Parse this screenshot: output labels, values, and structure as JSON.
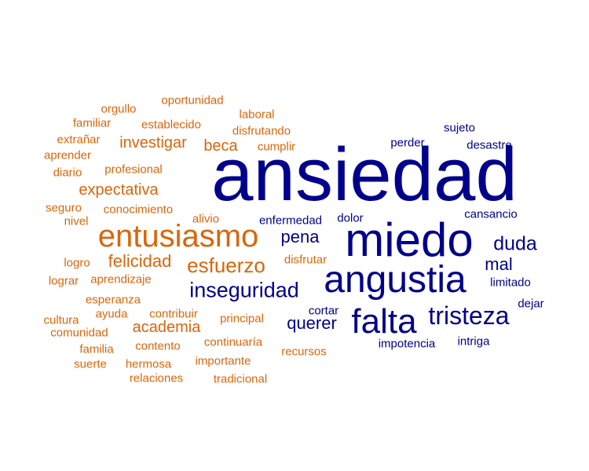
{
  "colors": {
    "negative": "#00008b",
    "positive": "#d9660b",
    "background": "#ffffff"
  },
  "negative_words": [
    "ansiedad",
    "miedo",
    "angustia",
    "falta",
    "tristeza",
    "inseguridad",
    "duda",
    "pena",
    "querer",
    "mal",
    "sujeto",
    "desastre",
    "perder",
    "cansancio",
    "dolor",
    "enfermedad",
    "limitado",
    "cortar",
    "dejar",
    "impotencia",
    "intriga"
  ],
  "positive_words": [
    "entusiasmo",
    "esfuerzo",
    "felicidad",
    "investigar",
    "expectativa",
    "academia",
    "beca",
    "orgullo",
    "oportunidad",
    "laboral",
    "familiar",
    "establecido",
    "disfrutando",
    "extrañar",
    "aprender",
    "cumplir",
    "diario",
    "profesional",
    "seguro",
    "conocimiento",
    "nivel",
    "alivio",
    "logro",
    "disfrutar",
    "lograr",
    "aprendizaje",
    "esperanza",
    "ayuda",
    "contribuir",
    "cultura",
    "principal",
    "comunidad",
    "contento",
    "continuaría",
    "familia",
    "recursos",
    "suerte",
    "hermosa",
    "importante",
    "relaciones",
    "tradicional"
  ]
}
